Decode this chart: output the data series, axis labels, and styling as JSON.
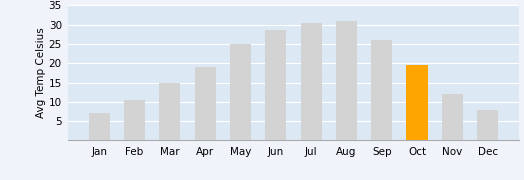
{
  "months": [
    "Jan",
    "Feb",
    "Mar",
    "Apr",
    "May",
    "Jun",
    "Jul",
    "Aug",
    "Sep",
    "Oct",
    "Nov",
    "Dec"
  ],
  "values": [
    7,
    10.5,
    15,
    19,
    25,
    28.5,
    30.5,
    31,
    26,
    19.5,
    12,
    8
  ],
  "bar_colors": [
    "#d3d3d3",
    "#d3d3d3",
    "#d3d3d3",
    "#d3d3d3",
    "#d3d3d3",
    "#d3d3d3",
    "#d3d3d3",
    "#d3d3d3",
    "#d3d3d3",
    "#FFA500",
    "#d3d3d3",
    "#d3d3d3"
  ],
  "ylabel": "Avg Temp Celsius",
  "ylim": [
    0,
    35
  ],
  "yticks": [
    5,
    10,
    15,
    20,
    25,
    30,
    35
  ],
  "background_color": "#dce9f5",
  "outer_background": "#f0f4fa",
  "bar_edge_color": "none",
  "grid_color": "#ffffff",
  "ylabel_fontsize": 7.5,
  "tick_fontsize": 7.5
}
